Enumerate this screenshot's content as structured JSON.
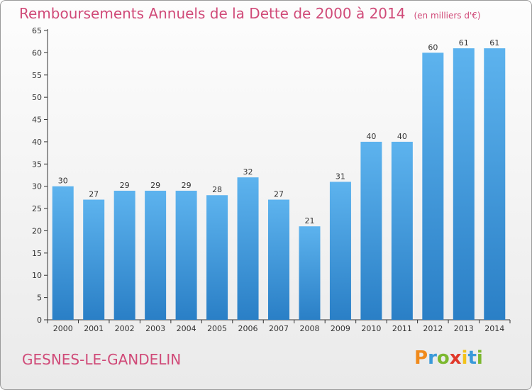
{
  "title": "Remboursements Annuels de la Dette de 2000 à 2014",
  "unit": "(en milliers d'€)",
  "commune": "GESNES-LE-GANDELIN",
  "logo": {
    "letters": [
      "P",
      "r",
      "o",
      "x",
      "i",
      "t",
      "i"
    ],
    "colors": [
      "#f08a1c",
      "#3a9ad9",
      "#7cb82f",
      "#e0392b",
      "#f2c21a",
      "#3a9ad9",
      "#7cb82f"
    ]
  },
  "colors": {
    "bar": "#4aa3e6",
    "bar_dark": "#2f86cf",
    "title": "#d04a78",
    "axis": "#333333"
  },
  "chart_data": {
    "type": "bar",
    "categories": [
      "2000",
      "2001",
      "2002",
      "2003",
      "2004",
      "2005",
      "2006",
      "2007",
      "2008",
      "2009",
      "2010",
      "2011",
      "2012",
      "2013",
      "2014"
    ],
    "values": [
      30,
      27,
      29,
      29,
      29,
      28,
      32,
      27,
      21,
      31,
      40,
      40,
      60,
      61,
      61
    ],
    "yticks": [
      0,
      5,
      10,
      15,
      20,
      25,
      30,
      35,
      40,
      45,
      50,
      55,
      60,
      65
    ],
    "ylim": [
      0,
      65
    ],
    "grid": false
  }
}
